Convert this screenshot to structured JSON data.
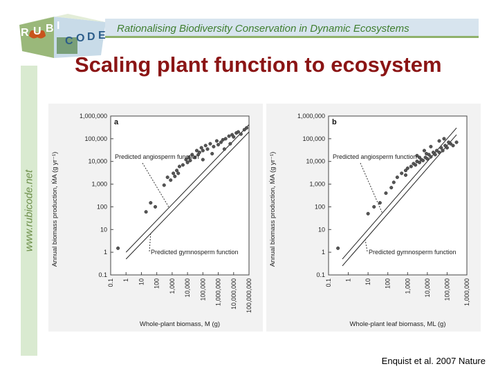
{
  "header": {
    "subtitle": "Rationalising Biodiversity Conservation in Dynamic Ecosystems"
  },
  "slide": {
    "title": "Scaling plant function to ecosystem"
  },
  "sidebar": {
    "url": "www.rubicode.net"
  },
  "logo": {
    "letters": [
      "R",
      "U",
      "B",
      "I",
      "C",
      "O",
      "D",
      "E"
    ]
  },
  "citation": "Enquist et al. 2007 Nature",
  "colors": {
    "title": "#8b1515",
    "accent_green": "#8fb16a",
    "header_band": "#d7e4ee",
    "header_text": "#3f7e2f",
    "points": "#555555"
  },
  "chart_data": [
    {
      "type": "scatter",
      "panel_label": "a",
      "xlabel": "Whole-plant biomass, M (g)",
      "ylabel": "Annual biomass production, ṀA (g yr⁻¹)",
      "x_scale": "log",
      "y_scale": "log",
      "xlim": [
        0.1,
        100000000
      ],
      "ylim": [
        0.1,
        1000000
      ],
      "x_ticks": [
        "0.1",
        "1",
        "10",
        "100",
        "1,000",
        "10,000",
        "100,000",
        "1,000,000",
        "10,000,000",
        "100,000,000"
      ],
      "y_ticks": [
        "0.1",
        "1",
        "10",
        "100",
        "1,000",
        "10,000",
        "100,000",
        "1,000,000"
      ],
      "annotations": [
        "Predicted angiosperm function",
        "Predicted gymnosperm function"
      ],
      "lines": [
        {
          "name": "angiosperm",
          "x": [
            1,
            100000000
          ],
          "y": [
            1,
            416000
          ]
        },
        {
          "name": "gymnosperm",
          "x": [
            1,
            100000000
          ],
          "y": [
            0.5,
            200000
          ]
        }
      ],
      "series": [
        {
          "x": [
            0.3,
            20,
            40,
            80,
            300,
            500,
            800,
            1200,
            1500,
            2000,
            2500,
            3000,
            5000,
            8000,
            10000,
            12000,
            15000,
            20000,
            30000,
            40000,
            50000,
            60000,
            80000,
            100000,
            150000,
            200000,
            300000,
            500000,
            800000,
            1000000,
            1500000,
            2000000,
            3000000,
            5000000,
            8000000,
            10000000,
            15000000,
            20000000,
            30000000,
            50000000,
            70000000,
            100000,
            400000,
            2500000,
            6000000
          ],
          "y": [
            1.5,
            60,
            150,
            100,
            900,
            2000,
            1500,
            3000,
            2200,
            4000,
            3000,
            6000,
            7000,
            12000,
            9000,
            15000,
            11000,
            20000,
            15000,
            30000,
            20000,
            25000,
            40000,
            30000,
            50000,
            35000,
            60000,
            45000,
            80000,
            55000,
            70000,
            90000,
            100000,
            130000,
            150000,
            120000,
            180000,
            200000,
            160000,
            250000,
            300000,
            12000,
            22000,
            35000,
            60000
          ]
        }
      ]
    },
    {
      "type": "scatter",
      "panel_label": "b",
      "xlabel": "Whole-plant leaf biomass, ML (g)",
      "ylabel": "Annual biomass production, ṀA (g yr⁻¹)",
      "x_scale": "log",
      "y_scale": "log",
      "xlim": [
        0.1,
        1000000
      ],
      "ylim": [
        0.1,
        1000000
      ],
      "x_ticks": [
        "0.1",
        "1",
        "10",
        "100",
        "1,000",
        "10,000",
        "100,000",
        "1,000,000"
      ],
      "y_ticks": [
        "0.1",
        "1",
        "10",
        "100",
        "1,000",
        "10,000",
        "100,000",
        "1,000,000"
      ],
      "annotations": [
        "Predicted angiosperm function",
        "Predicted gymnosperm function"
      ],
      "lines": [
        {
          "name": "angiosperm",
          "x": [
            0.5,
            300000
          ],
          "y": [
            0.5,
            300000
          ]
        },
        {
          "name": "gymnosperm",
          "x": [
            0.5,
            300000
          ],
          "y": [
            0.25,
            150000
          ]
        }
      ],
      "series": [
        {
          "x": [
            0.3,
            10,
            20,
            40,
            80,
            150,
            200,
            300,
            500,
            800,
            1000,
            1500,
            2000,
            2500,
            3000,
            4000,
            5000,
            6000,
            8000,
            10000,
            12000,
            15000,
            20000,
            25000,
            30000,
            40000,
            50000,
            60000,
            80000,
            100000,
            150000,
            200000,
            300000,
            3000,
            7000,
            15000,
            40000,
            70000,
            120000,
            800,
            4000,
            9000
          ],
          "y": [
            1.5,
            50,
            100,
            150,
            400,
            700,
            1200,
            2000,
            3000,
            4000,
            5000,
            6000,
            8000,
            7000,
            10000,
            9000,
            12000,
            11000,
            15000,
            13000,
            20000,
            16000,
            25000,
            20000,
            30000,
            25000,
            40000,
            30000,
            50000,
            40000,
            60000,
            50000,
            70000,
            18000,
            30000,
            45000,
            80000,
            100000,
            70000,
            2500,
            15000,
            22000
          ]
        }
      ]
    }
  ]
}
